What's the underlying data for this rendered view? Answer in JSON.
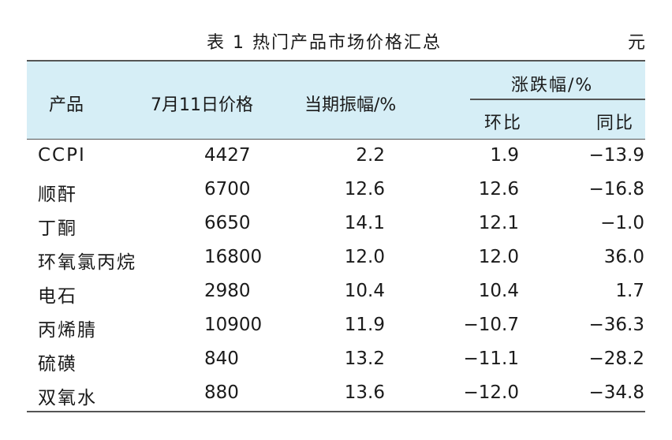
{
  "caption": {
    "title": "表 1  热门产品市场价格汇总",
    "unit": "元"
  },
  "headers": {
    "product": "产品",
    "price": "7月11日价格",
    "amplitude": "当期振幅/%",
    "change": "涨跌幅/%",
    "mom": "环比",
    "yoy": "同比"
  },
  "rows": [
    {
      "product": "CCPI",
      "price": "4427",
      "amplitude": "2.2",
      "mom": "1.9",
      "yoy": "−13.9"
    },
    {
      "product": "顺酐",
      "price": "6700",
      "amplitude": "12.6",
      "mom": "12.6",
      "yoy": "−16.8"
    },
    {
      "product": "丁酮",
      "price": "6650",
      "amplitude": "14.1",
      "mom": "12.1",
      "yoy": "−1.0"
    },
    {
      "product": "环氧氯丙烷",
      "price": "16800",
      "amplitude": "12.0",
      "mom": "12.0",
      "yoy": "36.0"
    },
    {
      "product": "电石",
      "price": "2980",
      "amplitude": "10.4",
      "mom": "10.4",
      "yoy": "1.7"
    },
    {
      "product": "丙烯腈",
      "price": "10900",
      "amplitude": "11.9",
      "mom": "−10.7",
      "yoy": "−36.3"
    },
    {
      "product": "硫磺",
      "price": "840",
      "amplitude": "13.2",
      "mom": "−11.1",
      "yoy": "−28.2"
    },
    {
      "product": "双氧水",
      "price": "880",
      "amplitude": "13.6",
      "mom": "−12.0",
      "yoy": "−34.8"
    }
  ]
}
